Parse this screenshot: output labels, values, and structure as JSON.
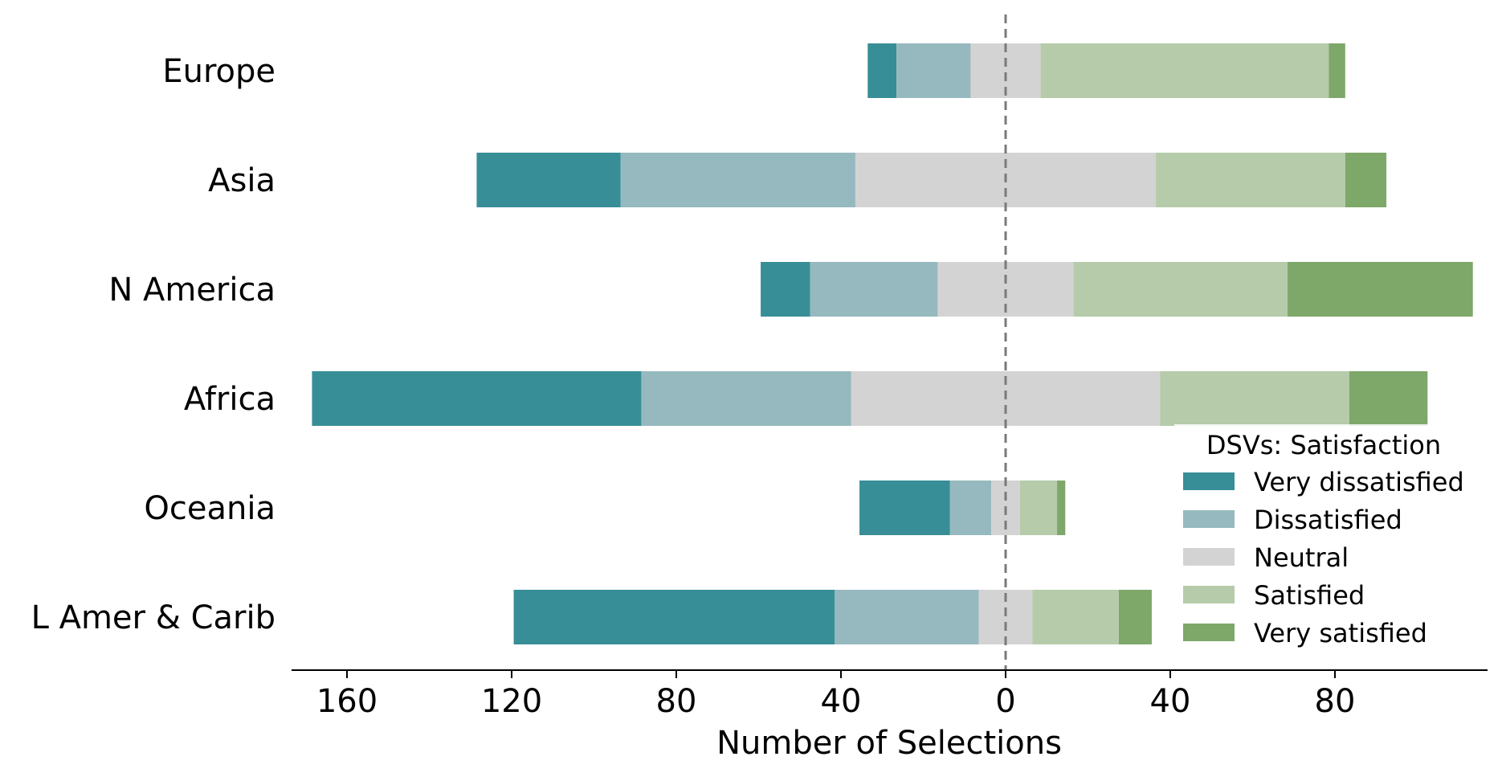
{
  "chart_data": {
    "type": "bar",
    "orientation": "horizontal-diverging",
    "categories": [
      "Europe",
      "Asia",
      "N America",
      "Africa",
      "Oceania",
      "L Amer & Carib"
    ],
    "series": [
      {
        "name": "Very dissatisfied",
        "color": "#388e96",
        "values": [
          7,
          35,
          12,
          80,
          22,
          78
        ]
      },
      {
        "name": "Dissatisfied",
        "color": "#96b9bf",
        "values": [
          18,
          57,
          31,
          51,
          10,
          35
        ]
      },
      {
        "name": "Neutral",
        "color": "#d3d3d3",
        "values": [
          17,
          73,
          33,
          75,
          7,
          13
        ]
      },
      {
        "name": "Satisfied",
        "color": "#b5cbaa",
        "values": [
          70,
          46,
          52,
          46,
          9,
          21
        ]
      },
      {
        "name": "Very satisfied",
        "color": "#7ea76a",
        "values": [
          4,
          10,
          45,
          19,
          2,
          8
        ]
      }
    ],
    "xlabel": "Number of Selections",
    "xticks": [
      -160,
      -120,
      -80,
      -40,
      0,
      40,
      80
    ],
    "xtick_labels": [
      "160",
      "120",
      "80",
      "40",
      "0",
      "40",
      "80"
    ],
    "xlim": [
      -174,
      117
    ],
    "zero_line": "dashed",
    "legend": {
      "title": "DSVs: Satisfaction",
      "position": "lower-right"
    },
    "grid": false
  }
}
